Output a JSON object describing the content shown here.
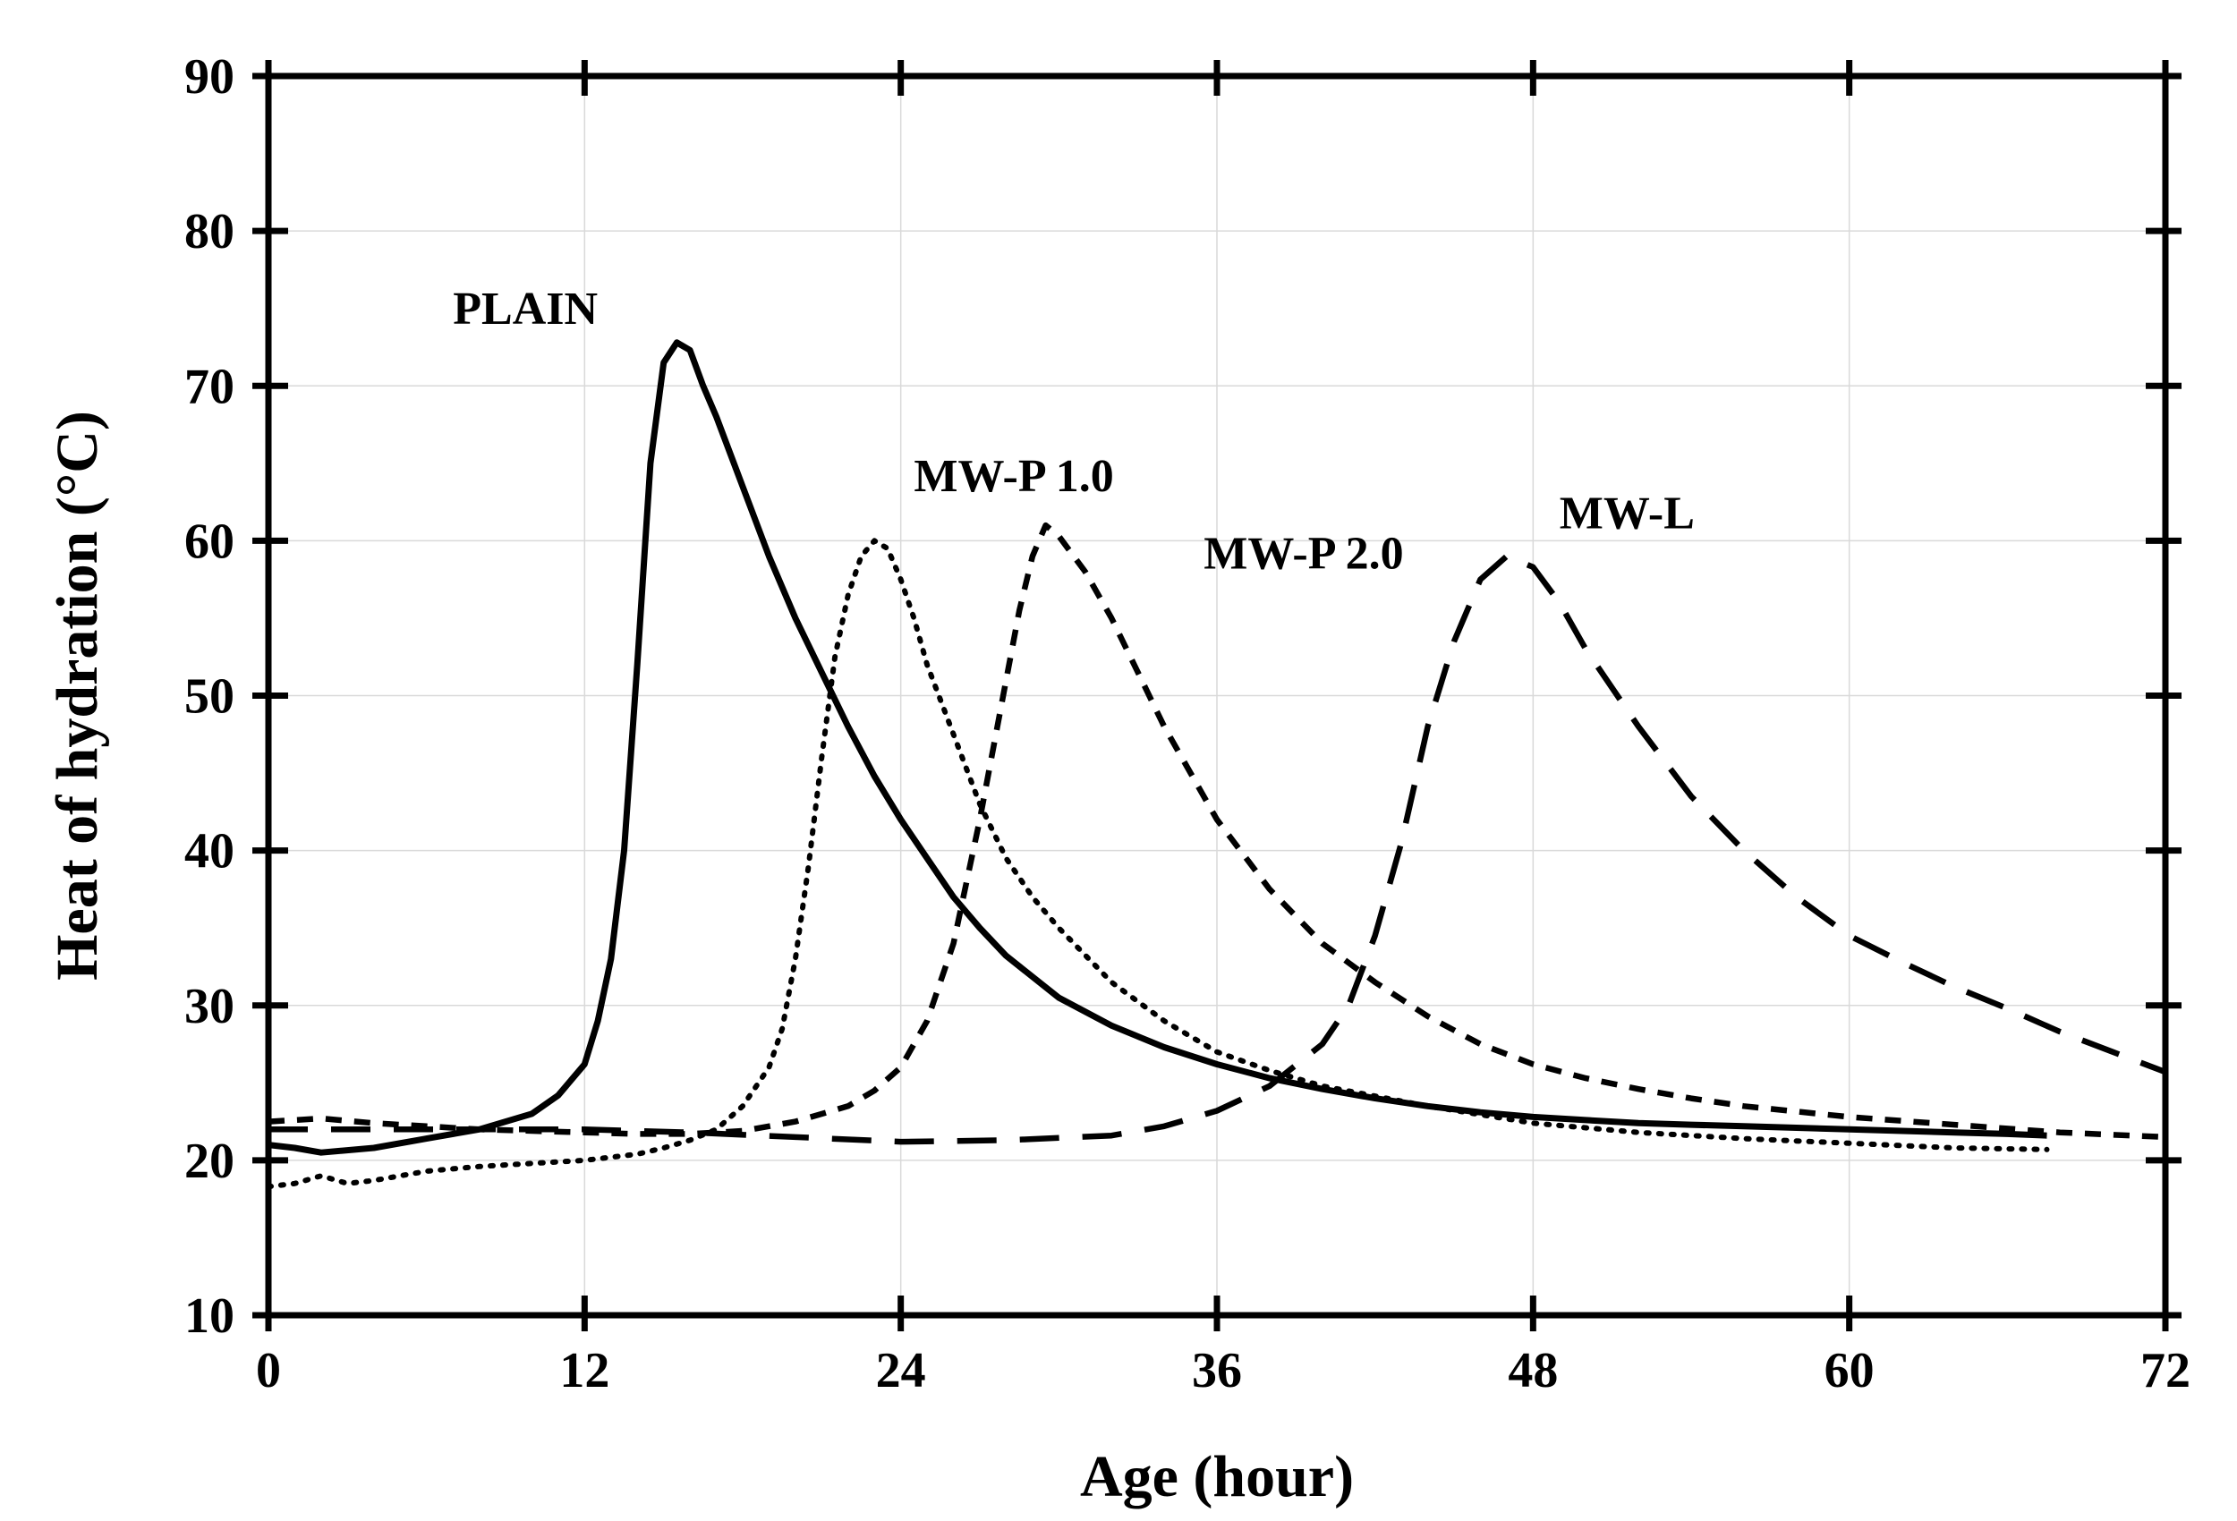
{
  "chart_data": {
    "type": "line",
    "title": "",
    "xlabel": "Age (hour)",
    "ylabel": "Heat of hydration (°C)",
    "xlim": [
      0,
      72
    ],
    "ylim": [
      10,
      90
    ],
    "xticks": [
      0,
      12,
      24,
      36,
      48,
      60,
      72
    ],
    "yticks": [
      10,
      20,
      30,
      40,
      50,
      60,
      70,
      80,
      90
    ],
    "xtick_labels": [
      "0",
      "12",
      "24",
      "36",
      "48",
      "60",
      "72"
    ],
    "ytick_labels": [
      "10",
      "20",
      "30",
      "40",
      "50",
      "60",
      "70",
      "80",
      "90"
    ],
    "grid": true,
    "series": [
      {
        "name": "PLAIN",
        "style": "solid",
        "x": [
          0,
          1,
          2,
          4,
          6,
          8,
          10,
          11,
          12,
          12.5,
          13,
          13.5,
          14,
          14.5,
          15,
          15.5,
          16,
          16.5,
          17,
          18,
          19,
          20,
          21,
          22,
          23,
          24,
          25,
          26,
          27,
          28,
          30,
          32,
          34,
          36,
          38,
          40,
          42,
          44,
          46,
          48,
          50,
          52,
          54,
          56,
          58,
          60,
          62,
          64,
          66,
          67.5
        ],
        "y": [
          21,
          20.8,
          20.5,
          20.8,
          21.4,
          22,
          23,
          24.2,
          26.2,
          29,
          33,
          40,
          52,
          65,
          71.5,
          72.8,
          72.3,
          70,
          68,
          63.5,
          59,
          55,
          51.5,
          48,
          44.8,
          42,
          39.5,
          37,
          35,
          33.2,
          30.5,
          28.7,
          27.3,
          26.2,
          25.3,
          24.6,
          24,
          23.5,
          23.1,
          22.8,
          22.6,
          22.4,
          22.3,
          22.2,
          22.1,
          22,
          21.9,
          21.8,
          21.7,
          21.6
        ]
      },
      {
        "name": "MW-P 1.0",
        "style": "dotted",
        "x": [
          0,
          1,
          2,
          3,
          4,
          6,
          8,
          10,
          12,
          14,
          15,
          16,
          17,
          18,
          19,
          19.5,
          20,
          20.5,
          21,
          21.5,
          22,
          22.5,
          23,
          23.5,
          24,
          24.5,
          25,
          26,
          27,
          28,
          29,
          30,
          32,
          34,
          36,
          38,
          40,
          44,
          48,
          52,
          56,
          60,
          64,
          67.5
        ],
        "y": [
          18.3,
          18.5,
          19,
          18.5,
          18.7,
          19.3,
          19.6,
          19.8,
          20,
          20.4,
          20.8,
          21.3,
          22,
          23.5,
          26,
          28.5,
          33,
          39,
          46,
          52.5,
          56.5,
          59,
          60,
          59.5,
          57.5,
          55,
          52,
          47.5,
          43,
          39.5,
          37,
          35,
          31.5,
          29,
          27,
          25.8,
          24.8,
          23.5,
          22.4,
          21.8,
          21.4,
          21.1,
          20.8,
          20.7
        ]
      },
      {
        "name": "MW-P 2.0",
        "style": "dashed",
        "x": [
          0,
          2,
          4,
          6,
          8,
          10,
          12,
          14,
          16,
          18,
          20,
          22,
          23,
          24,
          25,
          26,
          27,
          28,
          28.5,
          29,
          29.5,
          30,
          31,
          32,
          33,
          34,
          35,
          36,
          38,
          40,
          42,
          44,
          46,
          48,
          50,
          52,
          54,
          56,
          60,
          64,
          68,
          72
        ],
        "y": [
          22.5,
          22.7,
          22.4,
          22.2,
          22,
          21.9,
          21.8,
          21.7,
          21.7,
          21.9,
          22.5,
          23.5,
          24.5,
          26,
          29,
          34,
          42,
          51,
          55.5,
          59,
          61,
          60.3,
          58,
          55,
          51.5,
          48,
          45,
          42,
          37.5,
          34,
          31.5,
          29.3,
          27.5,
          26.2,
          25.3,
          24.6,
          24,
          23.5,
          22.8,
          22.3,
          21.8,
          21.5
        ]
      },
      {
        "name": "MW-L",
        "style": "long-dashed",
        "x": [
          0,
          4,
          8,
          12,
          16,
          20,
          24,
          28,
          32,
          34,
          36,
          38,
          40,
          41,
          42,
          43,
          44,
          45,
          46,
          47,
          48,
          49,
          50,
          52,
          54,
          56,
          58,
          60,
          62,
          64,
          66,
          68,
          70,
          72
        ],
        "y": [
          22,
          22,
          22,
          22,
          21.8,
          21.5,
          21.2,
          21.3,
          21.6,
          22.2,
          23.2,
          24.8,
          27.5,
          30,
          34.5,
          40.5,
          48,
          53.5,
          57.5,
          59,
          58.3,
          56,
          53,
          48,
          43.5,
          40,
          37,
          34.5,
          32.8,
          31.2,
          29.8,
          28.3,
          27,
          25.7
        ]
      }
    ],
    "annotations": [
      {
        "text": "PLAIN",
        "x": 12.5,
        "y": 74
      },
      {
        "text": "MW-P 1.0",
        "x": 24.5,
        "y": 63.2
      },
      {
        "text": "MW-P 2.0",
        "x": 35.5,
        "y": 58.2
      },
      {
        "text": "MW-L",
        "x": 49,
        "y": 60.8
      }
    ]
  }
}
